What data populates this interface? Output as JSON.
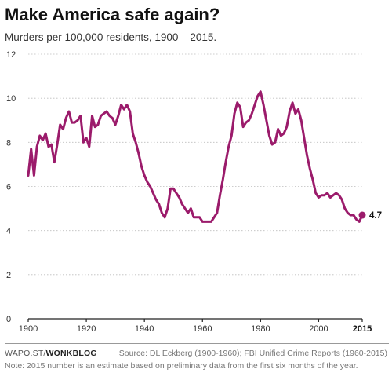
{
  "header": {
    "title": "Make America safe again?",
    "subtitle": "Murders per 100,000 residents, 1900 – 2015."
  },
  "footer": {
    "brand_prefix": "WAPO.ST/",
    "brand_name": "WONKBLOG",
    "source": "Source: DL Eckberg (1900-1960); FBI Unified Crime Reports (1960-2015)",
    "note": "Note: 2015 number is an estimate based on preliminary data from the first six months of the year."
  },
  "chart_data": {
    "type": "line",
    "title": "Make America safe again?",
    "subtitle": "Murders per 100,000 residents, 1900 – 2015.",
    "xlim": [
      1900,
      2015
    ],
    "ylim": [
      0,
      12
    ],
    "x_ticks": [
      "1900",
      "1920",
      "1940",
      "1960",
      "1980",
      "2000",
      "2015"
    ],
    "y_ticks": [
      "0",
      "2",
      "4",
      "6",
      "8",
      "10",
      "12"
    ],
    "grid": "horizontal-dotted",
    "color": "#9b1b6b",
    "end_label": "4.7",
    "series": [
      {
        "x": [
          1900,
          1901,
          1902,
          1903,
          1904,
          1905,
          1906,
          1907,
          1908,
          1909,
          1910,
          1911,
          1912,
          1913,
          1914,
          1915,
          1916,
          1917,
          1918,
          1919,
          1920,
          1921,
          1922,
          1923,
          1924,
          1925,
          1926,
          1927,
          1928,
          1929,
          1930,
          1931,
          1932,
          1933,
          1934,
          1935,
          1936,
          1937,
          1938,
          1939,
          1940,
          1941,
          1942,
          1943,
          1944,
          1945,
          1946,
          1947,
          1948,
          1949,
          1950,
          1951,
          1952,
          1953,
          1954,
          1955,
          1956,
          1957,
          1958,
          1959,
          1960,
          1961,
          1962,
          1963,
          1964,
          1965,
          1966,
          1967,
          1968,
          1969,
          1970,
          1971,
          1972,
          1973,
          1974,
          1975,
          1976,
          1977,
          1978,
          1979,
          1980,
          1981,
          1982,
          1983,
          1984,
          1985,
          1986,
          1987,
          1988,
          1989,
          1990,
          1991,
          1992,
          1993,
          1994,
          1995,
          1996,
          1997,
          1998,
          1999,
          2000,
          2001,
          2002,
          2003,
          2004,
          2005,
          2006,
          2007,
          2008,
          2009,
          2010,
          2011,
          2012,
          2013,
          2014,
          2015
        ],
        "values": [
          6.5,
          7.7,
          6.5,
          7.8,
          8.3,
          8.1,
          8.4,
          7.8,
          7.9,
          7.1,
          7.9,
          8.8,
          8.6,
          9.1,
          9.4,
          8.9,
          8.9,
          9.0,
          9.2,
          8.0,
          8.2,
          7.8,
          9.2,
          8.7,
          8.8,
          9.2,
          9.3,
          9.4,
          9.2,
          9.1,
          8.8,
          9.2,
          9.7,
          9.5,
          9.7,
          9.4,
          8.4,
          8.0,
          7.5,
          6.9,
          6.5,
          6.2,
          6.0,
          5.7,
          5.4,
          5.2,
          4.8,
          4.6,
          5.0,
          5.9,
          5.9,
          5.7,
          5.5,
          5.2,
          5.0,
          4.8,
          5.0,
          4.6,
          4.6,
          4.6,
          4.4,
          4.4,
          4.4,
          4.4,
          4.6,
          4.8,
          5.6,
          6.3,
          7.1,
          7.8,
          8.3,
          9.3,
          9.8,
          9.6,
          8.7,
          8.9,
          9.0,
          9.3,
          9.7,
          10.1,
          10.3,
          9.7,
          9.0,
          8.3,
          7.9,
          8.0,
          8.6,
          8.3,
          8.4,
          8.7,
          9.4,
          9.8,
          9.3,
          9.5,
          9.0,
          8.2,
          7.4,
          6.8,
          6.3,
          5.7,
          5.5,
          5.6,
          5.6,
          5.7,
          5.5,
          5.6,
          5.7,
          5.6,
          5.4,
          5.0,
          4.8,
          4.7,
          4.7,
          4.5,
          4.4,
          4.7
        ]
      }
    ]
  }
}
